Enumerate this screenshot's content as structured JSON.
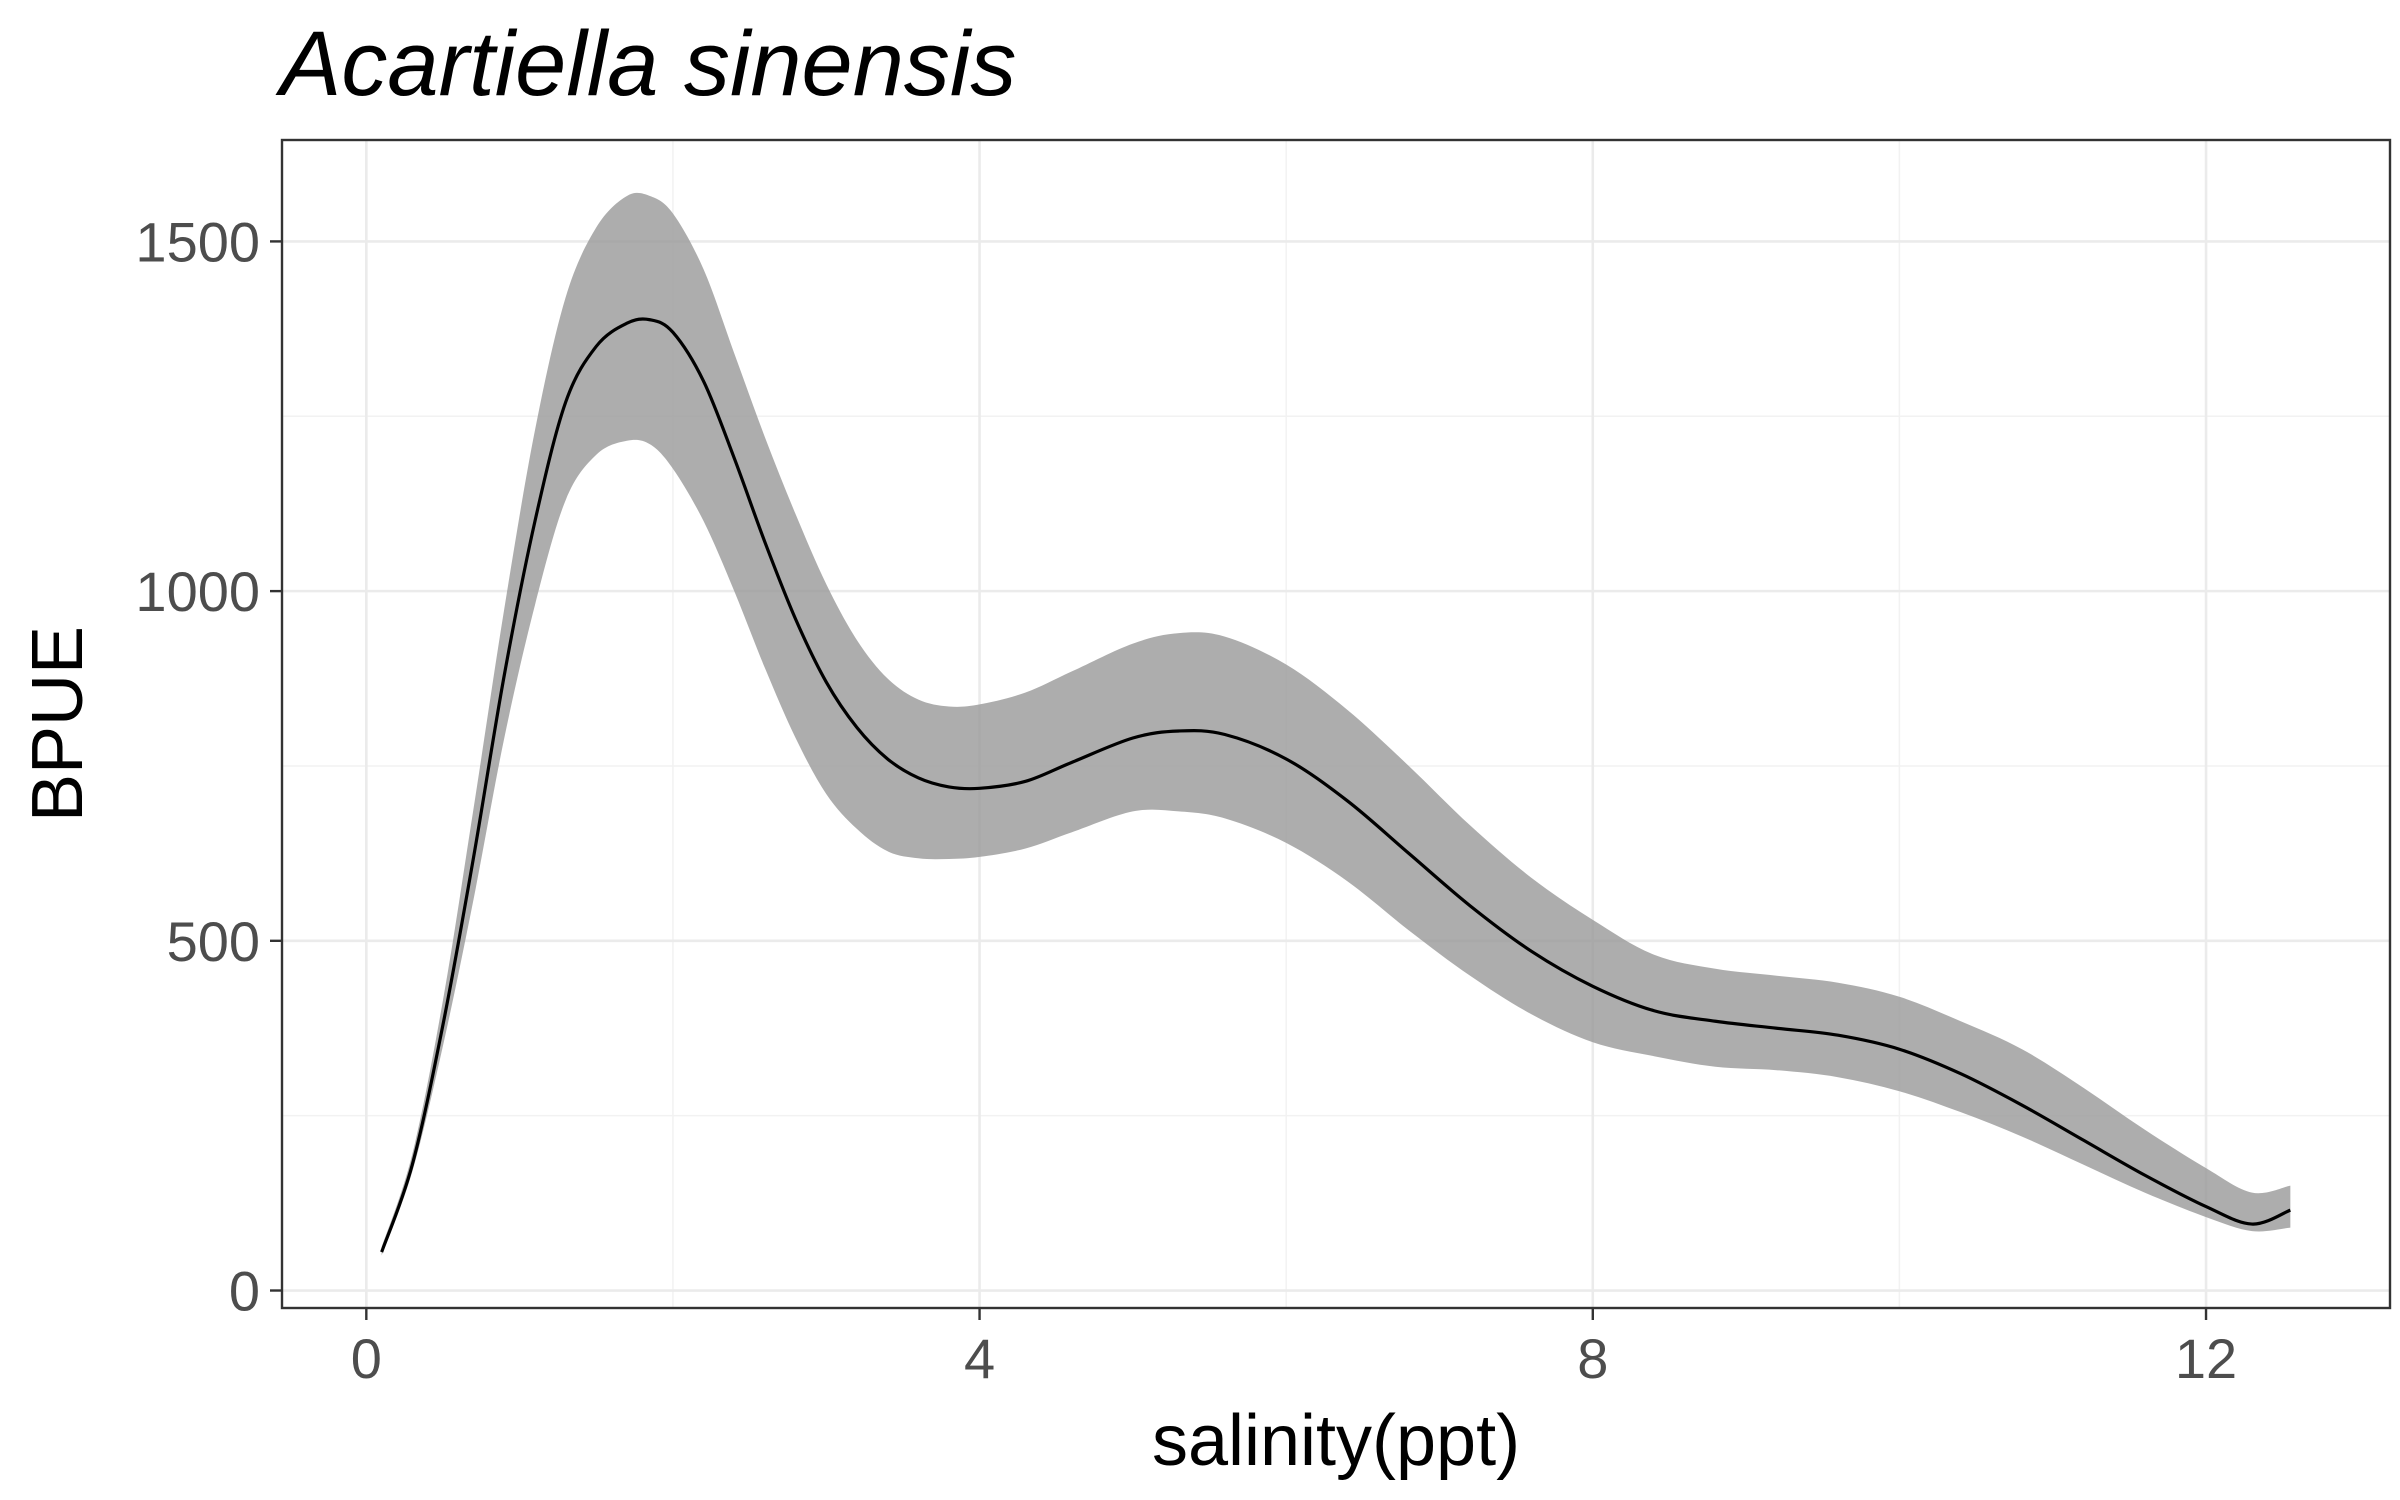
{
  "chart_data": {
    "type": "line",
    "title": "Acartiella sinensis",
    "xlabel": "salinity(ppt)",
    "ylabel": "BPUE",
    "xlim": [
      -0.55,
      13.2
    ],
    "ylim": [
      -25,
      1645
    ],
    "x_ticks": [
      0,
      4,
      8,
      12
    ],
    "x_tick_labels": [
      "0",
      "4",
      "8",
      "12"
    ],
    "y_ticks": [
      0,
      500,
      1000,
      1500
    ],
    "y_tick_labels": [
      "0",
      "500",
      "1000",
      "1500"
    ],
    "grid": true,
    "legend": "none",
    "series": [
      {
        "x": [
          0.1,
          0.3,
          0.5,
          0.7,
          0.9,
          1.1,
          1.3,
          1.5,
          1.7,
          1.85,
          2.0,
          2.2,
          2.4,
          2.6,
          2.8,
          3.0,
          3.2,
          3.4,
          3.6,
          3.8,
          4.0,
          4.3,
          4.6,
          5.0,
          5.3,
          5.6,
          6.0,
          6.4,
          6.8,
          7.2,
          7.6,
          8.0,
          8.4,
          8.8,
          9.2,
          9.6,
          10.0,
          10.4,
          10.8,
          11.2,
          11.6,
          12.0,
          12.3,
          12.55
        ],
        "y": [
          55,
          180,
          380,
          620,
          880,
          1100,
          1270,
          1350,
          1383,
          1388,
          1370,
          1300,
          1190,
          1070,
          960,
          870,
          805,
          760,
          733,
          720,
          718,
          728,
          755,
          790,
          800,
          795,
          760,
          700,
          625,
          550,
          485,
          435,
          400,
          385,
          375,
          365,
          345,
          310,
          265,
          215,
          165,
          120,
          95,
          115
        ],
        "y_lower": [
          50,
          170,
          350,
          560,
          790,
          980,
          1130,
          1195,
          1215,
          1210,
          1175,
          1100,
          1000,
          890,
          790,
          710,
          660,
          628,
          618,
          617,
          620,
          632,
          655,
          685,
          685,
          675,
          640,
          585,
          515,
          450,
          395,
          355,
          335,
          320,
          315,
          305,
          285,
          255,
          220,
          180,
          140,
          105,
          85,
          90
        ],
        "y_upper": [
          62,
          195,
          415,
          690,
          975,
          1230,
          1420,
          1520,
          1565,
          1565,
          1540,
          1460,
          1340,
          1220,
          1110,
          1010,
          930,
          875,
          845,
          835,
          838,
          855,
          885,
          925,
          940,
          935,
          895,
          830,
          750,
          665,
          590,
          530,
          480,
          460,
          450,
          440,
          420,
          385,
          345,
          290,
          230,
          175,
          140,
          150
        ]
      }
    ]
  },
  "colors": {
    "panel_background": "#ffffff",
    "panel_border": "#333333",
    "grid_major": "#ebebeb",
    "grid_minor": "#f2f2f2",
    "ribbon": "#999999",
    "line": "#000000",
    "tick_text": "#4d4d4d"
  }
}
